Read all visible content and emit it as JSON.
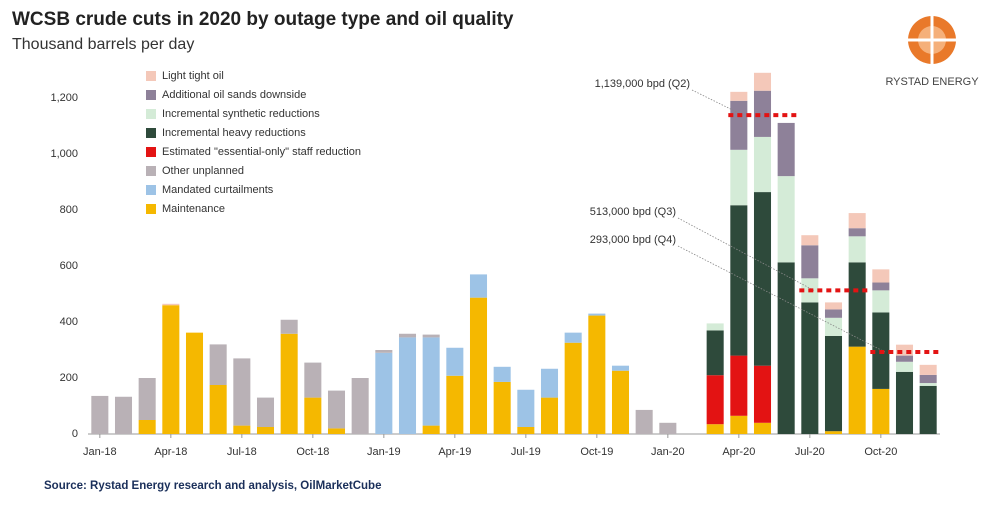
{
  "chart_data": {
    "type": "stacked_bar",
    "title": "WCSB crude cuts in 2020 by outage type and oil quality",
    "subtitle": "Thousand barrels per day",
    "brand": "RYSTAD ENERGY",
    "source": "Source: Rystad Energy research and analysis, OilMarketCube",
    "categories": [
      "Jan-18",
      null,
      null,
      "Apr-18",
      null,
      null,
      "Jul-18",
      null,
      null,
      "Oct-18",
      null,
      null,
      "Jan-19",
      null,
      null,
      "Apr-19",
      null,
      null,
      "Jul-19",
      null,
      null,
      "Oct-19",
      null,
      null,
      "Jan-20",
      null,
      null,
      "Apr-20",
      null,
      null,
      "Jul-20",
      null,
      null,
      "Oct-20",
      null,
      null
    ],
    "series": [
      {
        "name": "Maintenance",
        "color": "#f5b800",
        "values": [
          0,
          0,
          50,
          460,
          362,
          175,
          30,
          25,
          358,
          130,
          20,
          0,
          0,
          0,
          30,
          208,
          487,
          186,
          25,
          130,
          326,
          423,
          226,
          0,
          0,
          0,
          35,
          65,
          40,
          0,
          0,
          10,
          312,
          161,
          0,
          0
        ]
      },
      {
        "name": "Mandated curtailments",
        "color": "#9dc3e6",
        "values": [
          0,
          0,
          0,
          0,
          0,
          0,
          0,
          0,
          0,
          0,
          0,
          0,
          290,
          345,
          315,
          100,
          83,
          54,
          133,
          103,
          36,
          7,
          18,
          0,
          0,
          0,
          0,
          0,
          0,
          0,
          0,
          0,
          0,
          0,
          0,
          0
        ]
      },
      {
        "name": "Other unplanned",
        "color": "#b9b1b6",
        "values": [
          136,
          133,
          150,
          0,
          0,
          145,
          240,
          105,
          50,
          125,
          135,
          200,
          10,
          13,
          10,
          0,
          0,
          0,
          0,
          0,
          0,
          0,
          0,
          86,
          40,
          0,
          0,
          0,
          0,
          0,
          0,
          0,
          0,
          0,
          0,
          0
        ]
      },
      {
        "name": "Estimated \"essential-only\" staff reduction",
        "color": "#e31313",
        "values": [
          0,
          0,
          0,
          0,
          0,
          0,
          0,
          0,
          0,
          0,
          0,
          0,
          0,
          0,
          0,
          0,
          0,
          0,
          0,
          0,
          0,
          0,
          0,
          0,
          0,
          0,
          175,
          215,
          204,
          0,
          0,
          0,
          0,
          0,
          0,
          0
        ]
      },
      {
        "name": "Incremental heavy reductions",
        "color": "#2e4a3b",
        "values": [
          0,
          0,
          0,
          0,
          0,
          0,
          0,
          0,
          0,
          0,
          0,
          0,
          0,
          0,
          0,
          0,
          0,
          0,
          0,
          0,
          0,
          0,
          0,
          0,
          0,
          0,
          160,
          537,
          620,
          613,
          470,
          340,
          301,
          273,
          222,
          172
        ]
      },
      {
        "name": "Incremental synthetic reductions",
        "color": "#d4ebd7",
        "values": [
          0,
          0,
          0,
          0,
          0,
          0,
          0,
          0,
          0,
          0,
          0,
          0,
          0,
          0,
          0,
          0,
          0,
          0,
          0,
          0,
          0,
          0,
          0,
          0,
          0,
          0,
          25,
          198,
          197,
          308,
          86,
          65,
          93,
          79,
          36,
          10
        ]
      },
      {
        "name": "Additional oil sands downside",
        "color": "#8e8199",
        "values": [
          0,
          0,
          0,
          0,
          0,
          0,
          0,
          0,
          0,
          0,
          0,
          0,
          0,
          0,
          0,
          0,
          0,
          0,
          0,
          0,
          0,
          0,
          0,
          0,
          0,
          0,
          0,
          175,
          165,
          190,
          118,
          30,
          29,
          28,
          22,
          29
        ]
      },
      {
        "name": "Light tight oil",
        "color": "#f4c8b9",
        "values": [
          0,
          0,
          0,
          5,
          0,
          0,
          0,
          0,
          0,
          0,
          0,
          0,
          0,
          0,
          0,
          0,
          0,
          0,
          0,
          0,
          0,
          0,
          0,
          0,
          0,
          0,
          0,
          32,
          64,
          0,
          36,
          25,
          54,
          47,
          39,
          36
        ]
      }
    ],
    "annotations": [
      {
        "text": "1,139,000 bpd (Q2)",
        "value": 1139
      },
      {
        "text": "513,000 bpd (Q3)",
        "value": 513
      },
      {
        "text": "293,000 bpd (Q4)",
        "value": 293
      }
    ],
    "annotation_color": "#e31313",
    "ylim": [
      0,
      1300
    ],
    "yticks": [
      0,
      200,
      400,
      600,
      800,
      {
        "value": 1000,
        "label": "1,000"
      },
      {
        "value": 1200,
        "label": "1,200"
      }
    ],
    "grid": false
  }
}
